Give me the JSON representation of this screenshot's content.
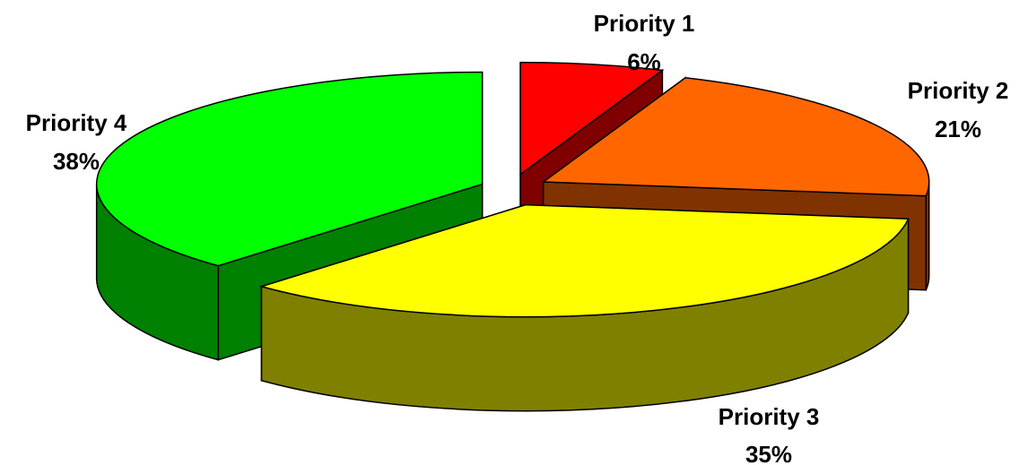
{
  "chart_data": {
    "type": "pie",
    "style": "3d-exploded",
    "slices": [
      {
        "name": "Priority 1",
        "value": 6,
        "percent_label": "6%",
        "color": "#ff0000",
        "side_color": "#800000"
      },
      {
        "name": "Priority 2",
        "value": 21,
        "percent_label": "21%",
        "color": "#ff6600",
        "side_color": "#803300"
      },
      {
        "name": "Priority 3",
        "value": 35,
        "percent_label": "35%",
        "color": "#ffff00",
        "side_color": "#808000"
      },
      {
        "name": "Priority 4",
        "value": 38,
        "percent_label": "38%",
        "color": "#00ff00",
        "side_color": "#008000"
      }
    ]
  }
}
